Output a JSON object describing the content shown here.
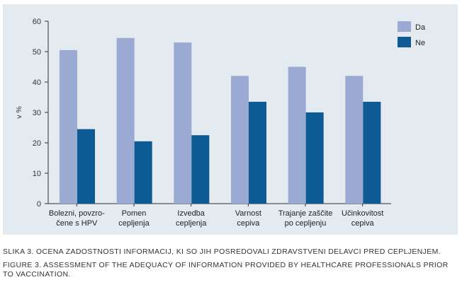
{
  "chart_data": {
    "type": "bar",
    "categories": [
      [
        "Bolezni, povzro-",
        "čene s HPV"
      ],
      [
        "Pomen",
        "cepljenja"
      ],
      [
        "Izvedba",
        "cepljenja"
      ],
      [
        "Varnost",
        "cepiva"
      ],
      [
        "Trajanje zaščite",
        "po cepljenju"
      ],
      [
        "Učinkovitost",
        "cepiva"
      ]
    ],
    "series": [
      {
        "name": "Da",
        "color": "#9aaad2",
        "values": [
          50.5,
          54.5,
          53,
          42,
          45,
          42
        ]
      },
      {
        "name": "Ne",
        "color": "#0d5a94",
        "values": [
          24.5,
          20.5,
          22.5,
          33.5,
          30,
          33.5
        ]
      }
    ],
    "ylabel": "v %",
    "ylim": [
      0,
      60
    ],
    "yticks": [
      0,
      10,
      20,
      30,
      40,
      50,
      60
    ],
    "grid": false,
    "legend_position": "top-right"
  },
  "captions": {
    "slovene": "SLIKA 3. OCENA ZADOSTNOSTI INFORMACIJ, KI SO JIH POSREDOVALI ZDRAVSTVENI DELAVCI PRED CEPLJENJEM.",
    "english": "FIGURE 3. ASSESSMENT OF THE ADEQUACY OF INFORMATION PROVIDED BY HEALTHCARE PROFESSIONALS PRIOR TO VACCINATION."
  }
}
